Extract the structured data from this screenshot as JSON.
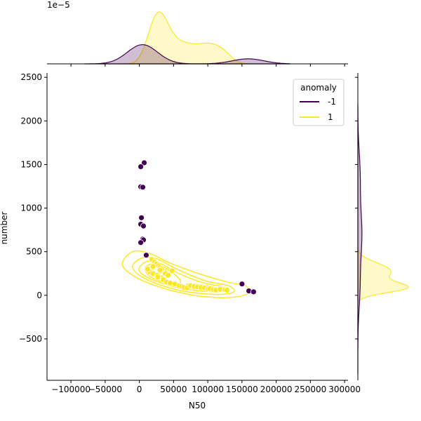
{
  "chart_data": {
    "type": "scatter",
    "subtype": "jointplot",
    "xlabel": "N50",
    "ylabel": "number",
    "xlim": [
      -135000,
      305000
    ],
    "ylim": [
      -975,
      2550
    ],
    "x_ticks": [
      -100000,
      -50000,
      0,
      50000,
      100000,
      150000,
      200000,
      250000,
      300000
    ],
    "x_tick_labels": [
      "−100000",
      "−50000",
      "0",
      "50000",
      "100000",
      "150000",
      "200000",
      "250000",
      "300000"
    ],
    "y_ticks": [
      -500,
      0,
      500,
      1000,
      1500,
      2000,
      2500
    ],
    "y_tick_labels": [
      "−500",
      "0",
      "500",
      "1000",
      "1500",
      "2000",
      "2500"
    ],
    "top_marginal_offset_label": "1e−5",
    "grid": false,
    "legend": {
      "title": "anomaly",
      "position": "top-right",
      "entries": [
        {
          "label": "-1",
          "color": "#440154"
        },
        {
          "label": "1",
          "color": "#fde725"
        }
      ]
    },
    "series": [
      {
        "name": "-1",
        "color": "#440154",
        "x": [
          7000,
          2000,
          2000,
          5000,
          3000,
          2000,
          6000,
          5000,
          6000,
          2000,
          10000,
          150000,
          160000,
          167000
        ],
        "y": [
          1520,
          1475,
          1245,
          1240,
          890,
          815,
          795,
          645,
          635,
          605,
          460,
          130,
          50,
          40
        ]
      },
      {
        "name": "1",
        "color": "#fde725",
        "x": [
          18000,
          22000,
          25000,
          28000,
          30000,
          32000,
          15000,
          20000,
          26000,
          33000,
          35000,
          40000,
          45000,
          48000,
          52000,
          58000,
          62000,
          65000,
          70000,
          75000,
          80000,
          85000,
          90000,
          95000,
          100000,
          103000,
          108000,
          112000,
          118000,
          125000,
          128000,
          20000,
          30000,
          38000,
          42000,
          12000,
          27000
        ],
        "y": [
          410,
          380,
          360,
          340,
          320,
          300,
          270,
          250,
          230,
          200,
          180,
          150,
          140,
          280,
          130,
          110,
          100,
          90,
          85,
          110,
          100,
          95,
          90,
          85,
          70,
          75,
          65,
          60,
          70,
          65,
          60,
          330,
          290,
          250,
          230,
          300,
          210
        ]
      }
    ]
  }
}
